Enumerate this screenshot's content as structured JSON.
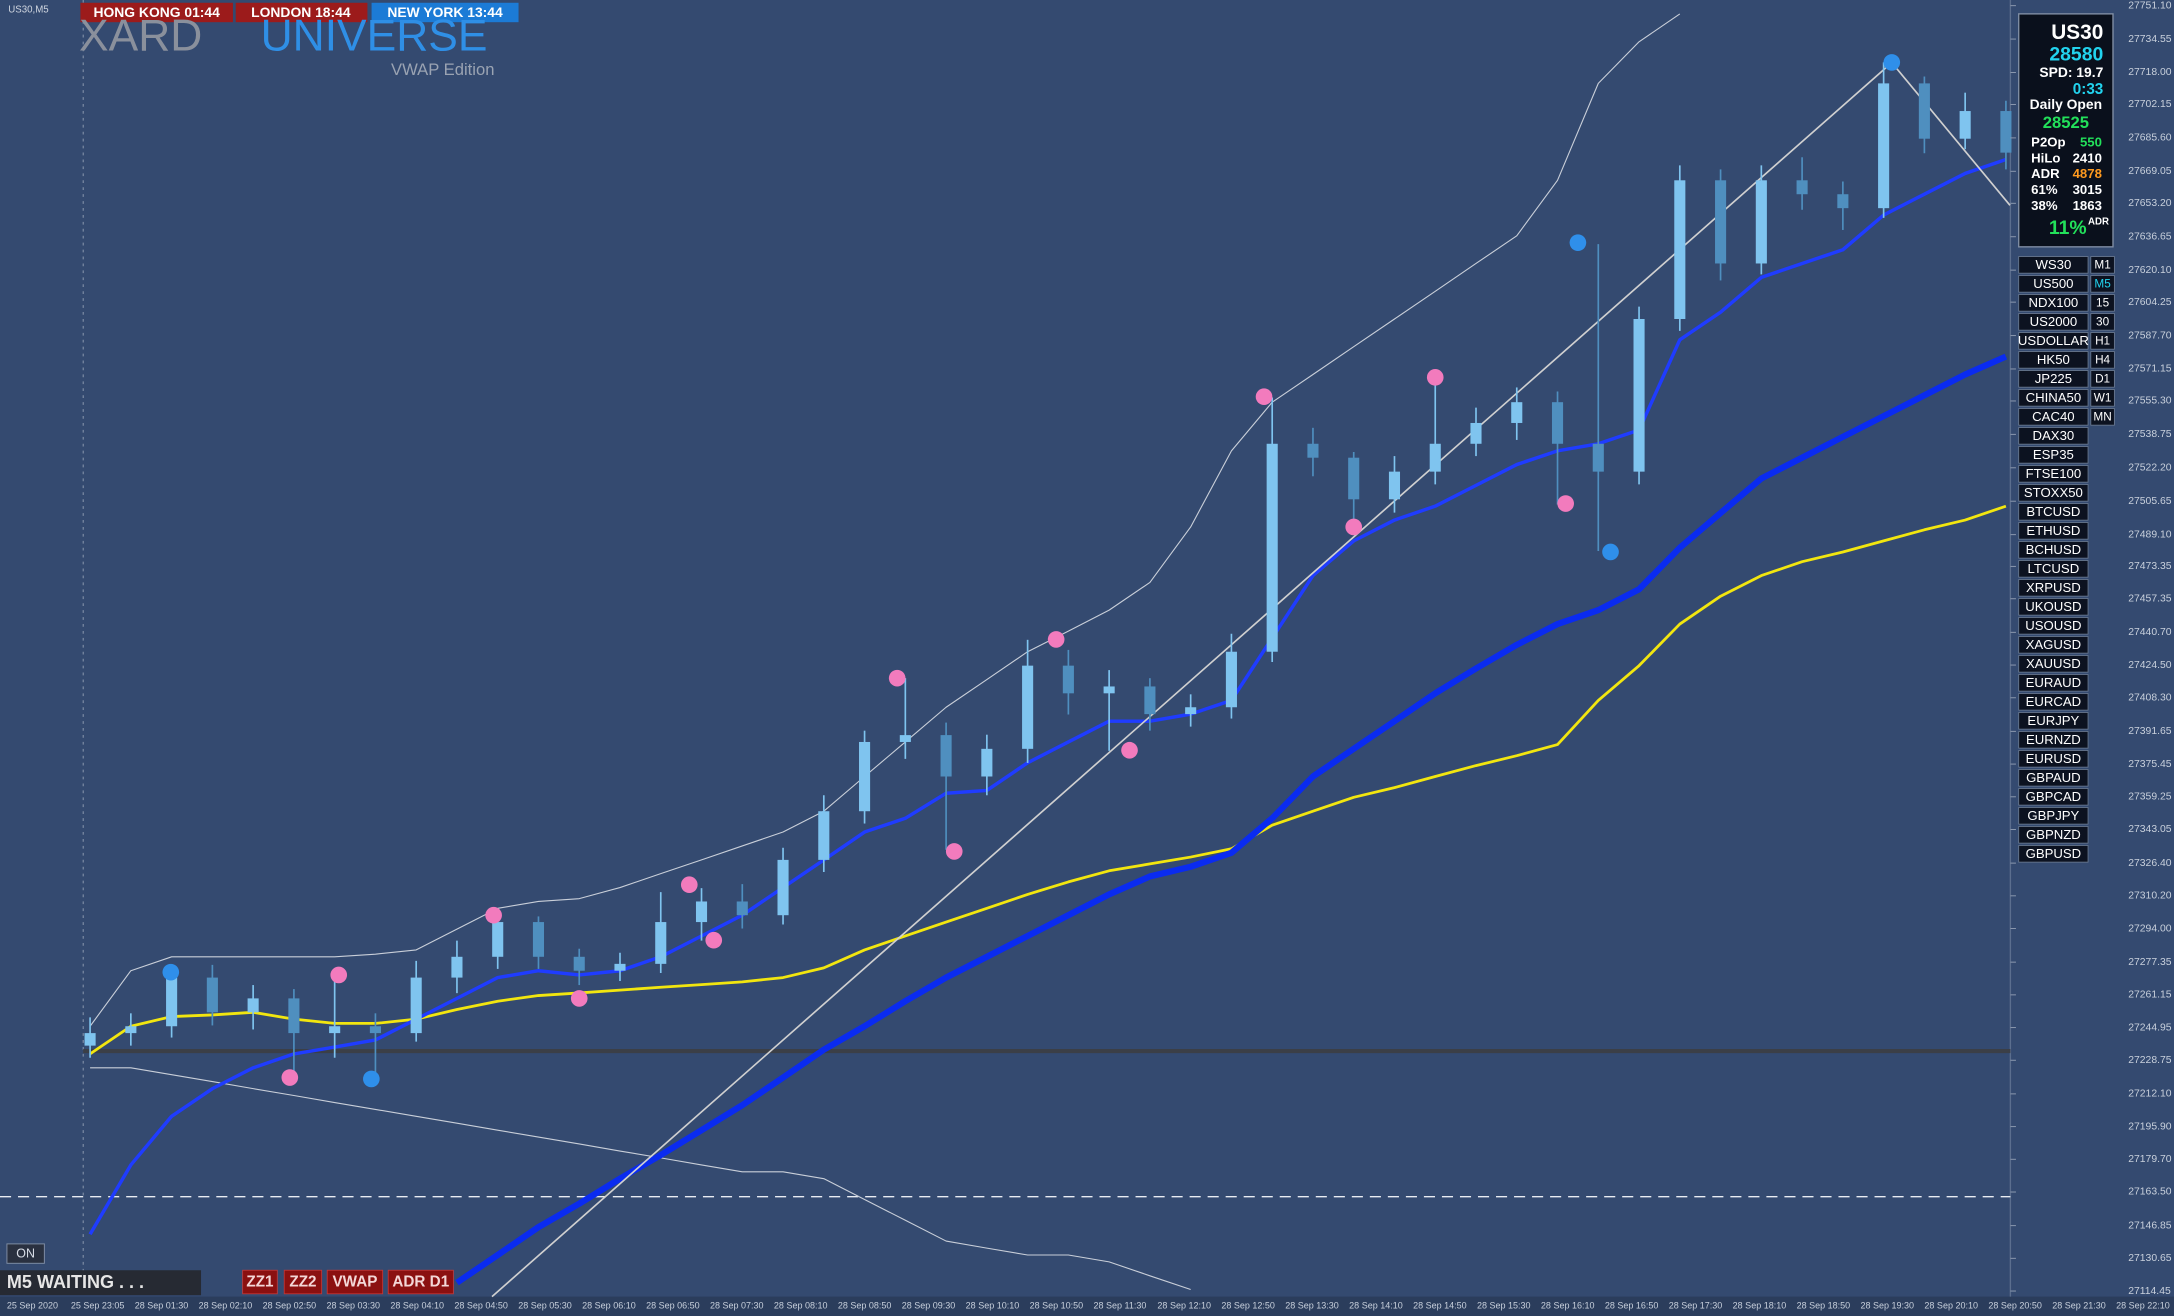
{
  "chart_data": {
    "type": "candlestick",
    "xlim": [
      -2.21,
      47.11
    ],
    "ylim": [
      27111.7,
      27753.9
    ],
    "yticks": [
      {
        "value": 27114.45,
        "label": "27114.45"
      },
      27130.65,
      27146.85,
      {
        "value": 27163.5,
        "label": "27163.50"
      },
      {
        "value": 27179.7,
        "label": "27179.70"
      },
      {
        "value": 27195.9,
        "label": "27195.90"
      },
      {
        "value": 27212.1,
        "label": "27212.10"
      },
      27228.75,
      27244.95,
      27261.15,
      27277.35,
      {
        "value": 27294,
        "label": "27294.00"
      },
      {
        "value": 27310.2,
        "label": "27310.20"
      },
      {
        "value": 27326.4,
        "label": "27326.40"
      },
      27343.05,
      27359.25,
      27375.45,
      27391.65,
      {
        "value": 27408.3,
        "label": "27408.30"
      },
      {
        "value": 27424.5,
        "label": "27424.50"
      },
      {
        "value": 27440.7,
        "label": "27440.70"
      },
      27457.35,
      27473.35,
      {
        "value": 27489.1,
        "label": "27489.10"
      },
      27505.65,
      {
        "value": 27522.2,
        "label": "27522.20"
      },
      27538.75,
      {
        "value": 27555.3,
        "label": "27555.30"
      },
      27571.15,
      {
        "value": 27587.7,
        "label": "27587.70"
      },
      27604.25,
      {
        "value": 27620.1,
        "label": "27620.10"
      },
      27636.65,
      {
        "value": 27653.2,
        "label": "27653.20"
      },
      27669.05,
      {
        "value": 27685.6,
        "label": "27685.60"
      },
      27702.15,
      {
        "value": 27718,
        "label": "27718.00"
      },
      27734.55,
      {
        "value": 27751.1,
        "label": "27751.10"
      }
    ],
    "time_labels": [
      "25 Sep 2020",
      "25 Sep 23:05",
      "28 Sep 01:30",
      "28 Sep 02:10",
      "28 Sep 02:50",
      "28 Sep 03:30",
      "28 Sep 04:10",
      "28 Sep 04:50",
      "28 Sep 05:30",
      "28 Sep 06:10",
      "28 Sep 06:50",
      "28 Sep 07:30",
      "28 Sep 08:10",
      "28 Sep 08:50",
      "28 Sep 09:30",
      "28 Sep 10:10",
      "28 Sep 10:50",
      "28 Sep 11:30",
      "28 Sep 12:10",
      "28 Sep 12:50",
      "28 Sep 13:30",
      "28 Sep 14:10",
      "28 Sep 14:50",
      "28 Sep 15:30",
      "28 Sep 16:10",
      "28 Sep 16:50",
      "28 Sep 17:30",
      "28 Sep 18:10",
      "28 Sep 18:50",
      "28 Sep 19:30",
      "28 Sep 20:10",
      "28 Sep 20:50",
      "28 Sep 21:30",
      "28 Sep 22:10"
    ],
    "up_color": "#7fc4ef",
    "down_color": "#4f8fbf",
    "open": [
      27236,
      27242.2,
      27245.6,
      27269.7,
      27252.5,
      27259.4,
      27242.2,
      27245.6,
      27242.2,
      27269.7,
      27280,
      27297.2,
      27280,
      27273.1,
      27276.5,
      27297.2,
      27307.4,
      27300.6,
      27328,
      27352.1,
      27386.4,
      27389.8,
      27369.3,
      27383,
      27424.2,
      27410.5,
      27413.9,
      27400.2,
      27403.6,
      27431.1,
      27534.1,
      27527.2,
      27506.6,
      27520.3,
      27534.1,
      27544.4,
      27554.7,
      27534.1,
      27520.3,
      27595.9,
      27664.6,
      27623.4,
      27664.6,
      27657.7,
      27650.8,
      27712.6,
      27685.2,
      27698.9
    ],
    "high": [
      27250,
      27252,
      27274,
      27276,
      27266,
      27264,
      27271,
      27252,
      27278,
      27288,
      27302,
      27300,
      27284,
      27282,
      27312,
      27314,
      27316,
      27334,
      27360,
      27392,
      27418,
      27396,
      27390,
      27437,
      27432,
      27422,
      27418,
      27410,
      27440,
      27557,
      27542,
      27530,
      27528,
      27567,
      27552,
      27562,
      27560,
      27633,
      27602,
      27672,
      27670,
      27672,
      27676,
      27664,
      27723,
      27716,
      27708,
      27704
    ],
    "low": [
      27230,
      27236,
      27240,
      27246,
      27244,
      27222,
      27230,
      27220,
      27238,
      27262,
      27274,
      27274,
      27266,
      27268,
      27272,
      27288,
      27294,
      27296,
      27322,
      27346,
      27378,
      27333,
      27360,
      27376,
      27400,
      27382,
      27392,
      27394,
      27398,
      27426,
      27518,
      27493,
      27500,
      27514,
      27528,
      27536,
      27504,
      27481,
      27514,
      27590,
      27615,
      27618,
      27650,
      27640,
      27646,
      27678,
      27680,
      27670
    ],
    "close": [
      27242.2,
      27245.6,
      27269.7,
      27252.5,
      27259.4,
      27242.2,
      27245.6,
      27242.2,
      27269.7,
      27280,
      27297.2,
      27280,
      27273.1,
      27276.5,
      27297.2,
      27307.4,
      27300.6,
      27328,
      27352.1,
      27386.4,
      27389.8,
      27369.3,
      27383,
      27424.2,
      27410.5,
      27413.9,
      27400.2,
      27403.6,
      27431.1,
      27534.1,
      27527.2,
      27506.6,
      27520.3,
      27534.1,
      27544.4,
      27554.7,
      27534.1,
      27520.3,
      27595.9,
      27664.6,
      27623.4,
      27664.6,
      27657.7,
      27650.8,
      27712.6,
      27685.2,
      27698.9,
      27678.3
    ],
    "lines": [
      {
        "color": "#1f3cff",
        "values": [
          27142.6,
          27176.9,
          27201,
          27214.7,
          27225,
          27231.9,
          27235.3,
          27238.8,
          27249.1,
          27259.4,
          27269.7,
          27273.1,
          27271,
          27273.1,
          27280,
          27290.3,
          27300.6,
          27314.3,
          27328,
          27341.8,
          27348.6,
          27361,
          27362.4,
          27376.1,
          27386.4,
          27396.7,
          27396.7,
          27400.2,
          27407,
          27437.9,
          27468.8,
          27486,
          27496.3,
          27503.2,
          27513.5,
          27523.8,
          27530.6,
          27534.1,
          27540.9,
          27585.6,
          27599.3,
          27616.5,
          27623.4,
          27630.2,
          27647.4,
          27657.7,
          27668,
          27674.9
        ]
      },
      {
        "color": "#f2e60f",
        "values": [
          27231.9,
          27245.6,
          27250.4,
          27251.2,
          27252.5,
          27249.1,
          27247,
          27247,
          27249.1,
          27253.9,
          27258,
          27260.8,
          27262.1,
          27263.5,
          27264.9,
          27266.2,
          27267.6,
          27269.7,
          27274.5,
          27283.4,
          27290.3,
          27297.2,
          27304,
          27310.9,
          27317.1,
          27322.6,
          27326,
          27329.4,
          27333.5,
          27345.2,
          27352.1,
          27359,
          27363.8,
          27369.3,
          27374.7,
          27379.6,
          27385.1,
          27407,
          27424.2,
          27444.8,
          27458.6,
          27468.8,
          27475.7,
          27480.5,
          27486,
          27491.5,
          27496.3,
          27503.2
        ]
      },
      {
        "color": "#0a2bf0",
        "values": [
          null,
          null,
          null,
          null,
          null,
          null,
          null,
          null,
          null,
          27118.6,
          27132.3,
          27146.1,
          27157.7,
          27170.1,
          27181.8,
          27194.1,
          27206.5,
          27220.2,
          27234,
          27245.6,
          27258,
          27269.7,
          27280,
          27290.3,
          27300.6,
          27310.9,
          27319.8,
          27324.6,
          27331.5,
          27348.6,
          27369.3,
          27383,
          27396.7,
          27410.5,
          27422.8,
          27434.5,
          27444.8,
          27451.7,
          27462,
          27482.6,
          27499.8,
          27516.9,
          27527.2,
          27537.5,
          27547.8,
          27558.1,
          27568.4,
          27577.3
        ]
      },
      {
        "color": "#c9cfd9",
        "values": [
          27245.6,
          27273.1,
          27280,
          27280,
          27280,
          27280,
          27280,
          27281.3,
          27283.4,
          27293.7,
          27304,
          27307.4,
          27308.8,
          27314.3,
          27321.2,
          27328,
          27334.9,
          27341.8,
          27352.1,
          27369.3,
          27386.4,
          27403.6,
          27417.3,
          27431.1,
          27441.3,
          27451.7,
          27465.4,
          27492.9,
          27530.6,
          27554.7,
          27568.4,
          27582.2,
          27595.9,
          27609.6,
          27623.4,
          27637.1,
          27664.6,
          27712.6,
          27733.2,
          27747,
          null,
          null,
          null,
          null,
          null,
          null,
          null,
          null
        ]
      },
      {
        "color": "#c9cfd9",
        "values": [
          27225,
          27225,
          27221.6,
          27218.2,
          27214.7,
          27211.3,
          27207.8,
          27204.4,
          27201,
          27197.6,
          27194.1,
          27190.7,
          27187.3,
          27183.8,
          27180.4,
          27176.9,
          27173.5,
          27173.5,
          27170.1,
          27159.8,
          27149.5,
          27139.2,
          27135.7,
          27132.3,
          27132.3,
          27128.9,
          27122,
          27115.2,
          null,
          null,
          null,
          null,
          null,
          null,
          null,
          null,
          null,
          null,
          null,
          null,
          null,
          null,
          null,
          null,
          null,
          null,
          null,
          null
        ]
      }
    ],
    "peaks": {
      "color": "#f27bbd",
      "x": [
        4.9,
        6.1,
        9.9,
        12.0,
        14.7,
        15.3,
        19.8,
        21.2,
        23.7,
        25.5,
        28.8,
        31.0,
        33.0,
        36.2
      ],
      "values": [
        27220.2,
        27271,
        27300.6,
        27259.4,
        27315.7,
        27288.2,
        27418,
        27332.2,
        27437.2,
        27382.3,
        27557.4,
        27492.9,
        27567,
        27504.5
      ]
    },
    "troughs": {
      "color": "#2f8fea",
      "x": [
        1.98,
        6.9,
        36.5,
        37.3,
        44.2
      ],
      "values": [
        27272.4,
        27219.5,
        27633.7,
        27480.5,
        27723
      ]
    },
    "trendline": {
      "color": "#d0d0d0",
      "x": [
        9.86,
        44.2,
        47.1
      ],
      "values": [
        27111.7,
        27722.9,
        27652.2
      ]
    },
    "level": 27233.3,
    "dashed_level": 27161.2
  },
  "chart_label": "US30,M5",
  "clocks": [
    "HONG KONG 01:44",
    "LONDON 18:44",
    "NEW YORK 13:44"
  ],
  "logo": {
    "left": "XARD",
    "right": "UNIVERSE",
    "edition": "VWAP Edition"
  },
  "panel": {
    "symbol": "US30",
    "price": 28580,
    "spread": "SPD: 19.7",
    "timer": "0:33",
    "daily_open_label": "Daily Open",
    "daily_open": 28525,
    "rows": [
      [
        "P2Op",
        550
      ],
      [
        "HiLo",
        2410
      ],
      [
        "ADR",
        4878
      ],
      [
        "61%",
        3015
      ],
      [
        "38%",
        1863
      ]
    ],
    "adr_pct": "11%",
    "adr_pct_suffix": "ADR"
  },
  "symbols": [
    "WS30",
    "US500",
    "NDX100",
    "US2000",
    "USDOLLAR",
    "HK50",
    "JP225",
    "CHINA50",
    "CAC40",
    "DAX30",
    "ESP35",
    "FTSE100",
    "STOXX50",
    "BTCUSD",
    "ETHUSD",
    "BCHUSD",
    "LTCUSD",
    "XRPUSD",
    "UKOUSD",
    "USOUSD",
    "XAGUSD",
    "XAUUSD",
    "EURAUD",
    "EURCAD",
    "EURJPY",
    "EURNZD",
    "EURUSD",
    "GBPAUD",
    "GBPCAD",
    "GBPJPY",
    "GBPNZD",
    "GBPUSD"
  ],
  "timeframes": [
    "M1",
    "M5",
    "15",
    "30",
    "H1",
    "H4",
    "D1",
    "W1",
    "MN"
  ],
  "status": {
    "toggle": "ON",
    "text": "M5  WAITING . . .",
    "buttons": [
      "ZZ1",
      "ZZ2",
      "VWAP",
      "ADR D1"
    ]
  }
}
